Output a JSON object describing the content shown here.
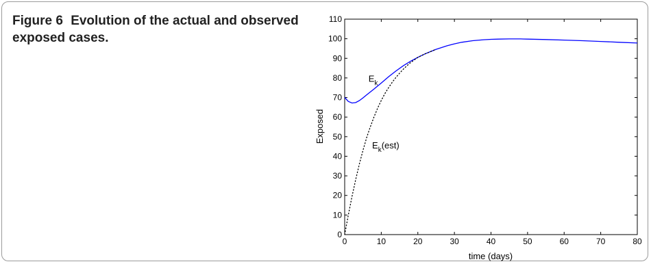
{
  "caption": {
    "label": "Figure 6",
    "text": "Evolution of the actual and observed exposed cases."
  },
  "chart_data": {
    "type": "line",
    "title": "",
    "xlabel": "time (days)",
    "ylabel": "Exposed",
    "xlim": [
      0,
      80
    ],
    "ylim": [
      0,
      110
    ],
    "xticks": [
      0,
      10,
      20,
      30,
      40,
      50,
      60,
      70,
      80
    ],
    "yticks": [
      0,
      10,
      20,
      30,
      40,
      50,
      60,
      70,
      80,
      90,
      100,
      110
    ],
    "grid": false,
    "series": [
      {
        "name": "E_k",
        "label_main": "E",
        "label_sub": "k",
        "label_suffix": "",
        "label_at": [
          6.5,
          78
        ],
        "style": "solid",
        "color": "#0000ff",
        "x": [
          0,
          1,
          2,
          3,
          4,
          5,
          6,
          8,
          10,
          12,
          14,
          16,
          18,
          20,
          22,
          25,
          28,
          30,
          32,
          35,
          38,
          40,
          42,
          45,
          48,
          50,
          55,
          60,
          65,
          70,
          75,
          80
        ],
        "y": [
          70,
          68,
          67.2,
          67.4,
          68.4,
          69.8,
          71.3,
          74.3,
          77.4,
          80.6,
          83.5,
          86.2,
          88.5,
          90.5,
          92.3,
          94.6,
          96.4,
          97.4,
          98.2,
          99.0,
          99.5,
          99.7,
          99.8,
          99.9,
          99.9,
          99.8,
          99.6,
          99.3,
          99.0,
          98.6,
          98.2,
          97.8
        ]
      },
      {
        "name": "E_k(est)",
        "label_main": "E",
        "label_sub": "k",
        "label_suffix": "(est)",
        "label_at": [
          7.5,
          44
        ],
        "style": "dotted",
        "color": "#000000",
        "x": [
          0,
          1,
          2,
          3,
          4,
          5,
          6,
          7,
          8,
          9,
          10,
          11,
          12,
          13,
          14,
          15,
          16,
          17,
          18,
          20,
          22,
          25
        ],
        "y": [
          0,
          10,
          19.5,
          28,
          36,
          43,
          49.5,
          55,
          60,
          64.5,
          68.5,
          72,
          75,
          77.8,
          80.2,
          82.4,
          84.4,
          86.2,
          87.8,
          90.5,
          92.3,
          94.6
        ]
      }
    ]
  }
}
